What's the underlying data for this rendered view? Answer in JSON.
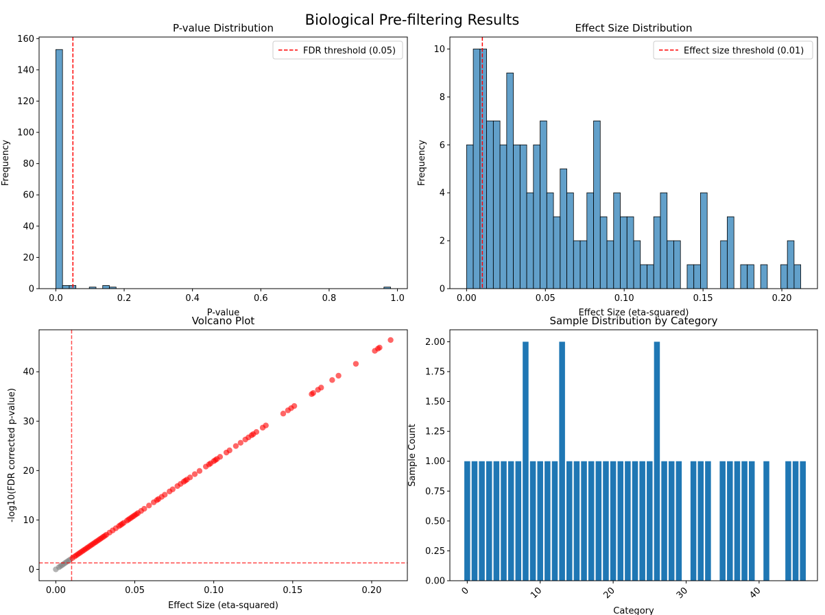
{
  "figure": {
    "title": "Biological Pre-filtering Results"
  },
  "chart_data": [
    {
      "id": "pvalue",
      "type": "bar",
      "title": "P-value Distribution",
      "xlabel": "P-value",
      "ylabel": "Frequency",
      "xlim": [
        -0.049,
        1.029
      ],
      "ylim": [
        0,
        161
      ],
      "xticks": [
        0.0,
        0.2,
        0.4,
        0.6,
        0.8,
        1.0
      ],
      "xtick_labels": [
        "0.0",
        "0.2",
        "0.4",
        "0.6",
        "0.8",
        "1.0"
      ],
      "yticks": [
        0,
        20,
        40,
        60,
        80,
        100,
        120,
        140,
        160
      ],
      "bin_width": 0.0196,
      "bins": [
        {
          "x0": 0.0,
          "count": 153
        },
        {
          "x0": 0.0196,
          "count": 2
        },
        {
          "x0": 0.0392,
          "count": 2
        },
        {
          "x0": 0.098,
          "count": 1
        },
        {
          "x0": 0.1372,
          "count": 2
        },
        {
          "x0": 0.1568,
          "count": 1
        },
        {
          "x0": 0.9604,
          "count": 1
        }
      ],
      "bar_color": "#1f77b4",
      "threshold": {
        "x": 0.05,
        "label": "FDR threshold (0.05)",
        "color": "#ff0000"
      },
      "legend_position": "upper right"
    },
    {
      "id": "effect",
      "type": "bar",
      "title": "Effect Size Distribution",
      "xlabel": "Effect Size (eta-squared)",
      "ylabel": "Frequency",
      "xlim": [
        -0.0106,
        0.2226
      ],
      "ylim": [
        0,
        10.5
      ],
      "xticks": [
        0.0,
        0.05,
        0.1,
        0.15,
        0.2
      ],
      "xtick_labels": [
        "0.00",
        "0.05",
        "0.10",
        "0.15",
        "0.20"
      ],
      "yticks": [
        0,
        2,
        4,
        6,
        8,
        10
      ],
      "bin_start": 0.0,
      "bin_width": 0.00424,
      "counts": [
        6,
        10,
        10,
        7,
        7,
        6,
        9,
        6,
        6,
        4,
        6,
        7,
        4,
        3,
        5,
        4,
        2,
        2,
        4,
        7,
        3,
        2,
        4,
        3,
        3,
        2,
        1,
        1,
        3,
        4,
        2,
        2,
        0,
        1,
        1,
        4,
        0,
        0,
        2,
        3,
        0,
        1,
        1,
        0,
        1,
        0,
        0,
        1,
        2,
        1
      ],
      "bar_color": "#1f77b4",
      "threshold": {
        "x": 0.01,
        "label": "Effect size threshold (0.01)",
        "color": "#ff0000"
      },
      "legend_position": "upper right"
    },
    {
      "id": "volcano",
      "type": "scatter",
      "title": "Volcano Plot",
      "xlabel": "Effect Size (eta-squared)",
      "ylabel": "-log10(FDR corrected p-value)",
      "xlim": [
        -0.0106,
        0.2226
      ],
      "ylim": [
        -2.3,
        48.5
      ],
      "xticks": [
        0.0,
        0.05,
        0.1,
        0.15,
        0.2
      ],
      "xtick_labels": [
        "0.00",
        "0.05",
        "0.10",
        "0.15",
        "0.20"
      ],
      "yticks": [
        0,
        10,
        20,
        30,
        40
      ],
      "slope": 219,
      "points_x": [
        0.0,
        0.002,
        0.003,
        0.004,
        0.005,
        0.006,
        0.007,
        0.008,
        0.009,
        0.0105,
        0.012,
        0.013,
        0.014,
        0.015,
        0.016,
        0.017,
        0.018,
        0.019,
        0.02,
        0.021,
        0.022,
        0.023,
        0.024,
        0.025,
        0.026,
        0.027,
        0.028,
        0.029,
        0.03,
        0.031,
        0.032,
        0.034,
        0.036,
        0.038,
        0.04,
        0.041,
        0.042,
        0.043,
        0.045,
        0.046,
        0.047,
        0.048,
        0.049,
        0.05,
        0.051,
        0.052,
        0.054,
        0.056,
        0.059,
        0.062,
        0.064,
        0.065,
        0.067,
        0.069,
        0.072,
        0.074,
        0.077,
        0.079,
        0.081,
        0.082,
        0.083,
        0.085,
        0.088,
        0.091,
        0.095,
        0.097,
        0.098,
        0.1,
        0.101,
        0.102,
        0.104,
        0.108,
        0.11,
        0.114,
        0.117,
        0.12,
        0.122,
        0.124,
        0.125,
        0.127,
        0.131,
        0.133,
        0.144,
        0.147,
        0.149,
        0.151,
        0.162,
        0.163,
        0.166,
        0.168,
        0.175,
        0.179,
        0.19,
        0.202,
        0.204,
        0.205,
        0.212
      ],
      "significance_threshold": 0.01,
      "color_significant": "#ff0000",
      "color_nonsignificant": "#808080",
      "vline": {
        "x": 0.01,
        "color": "#ff0000"
      },
      "hline": {
        "y": 1.301,
        "color": "#ff0000"
      }
    },
    {
      "id": "samples",
      "type": "bar",
      "title": "Sample Distribution by Category",
      "xlabel": "Category",
      "ylabel": "Sample Count",
      "xlim": [
        -2.38,
        48.0
      ],
      "ylim": [
        0,
        2.1
      ],
      "xticks": [
        0,
        10,
        20,
        30,
        40
      ],
      "xtick_labels": [
        "0",
        "10",
        "20",
        "30",
        "40"
      ],
      "yticks": [
        0,
        0.25,
        0.5,
        0.75,
        1.0,
        1.25,
        1.5,
        1.75,
        2.0
      ],
      "ytick_labels": [
        "0.00",
        "0.25",
        "0.50",
        "0.75",
        "1.00",
        "1.25",
        "1.50",
        "1.75",
        "2.00"
      ],
      "bar_width": 0.8,
      "categories": [
        0,
        1,
        2,
        3,
        4,
        5,
        6,
        7,
        8,
        9,
        10,
        11,
        12,
        13,
        14,
        15,
        16,
        17,
        18,
        19,
        20,
        21,
        22,
        23,
        24,
        25,
        26,
        27,
        28,
        29,
        31,
        32,
        33,
        35,
        36,
        37,
        38,
        39,
        41,
        44,
        45,
        46
      ],
      "values": [
        1,
        1,
        1,
        1,
        1,
        1,
        1,
        1,
        2,
        1,
        1,
        1,
        1,
        2,
        1,
        1,
        1,
        1,
        1,
        1,
        1,
        1,
        1,
        1,
        1,
        1,
        2,
        1,
        1,
        1,
        1,
        1,
        1,
        1,
        1,
        1,
        1,
        1,
        1,
        1,
        1,
        1
      ],
      "bar_color": "#1f77b4",
      "xtick_rotation": 45
    }
  ]
}
